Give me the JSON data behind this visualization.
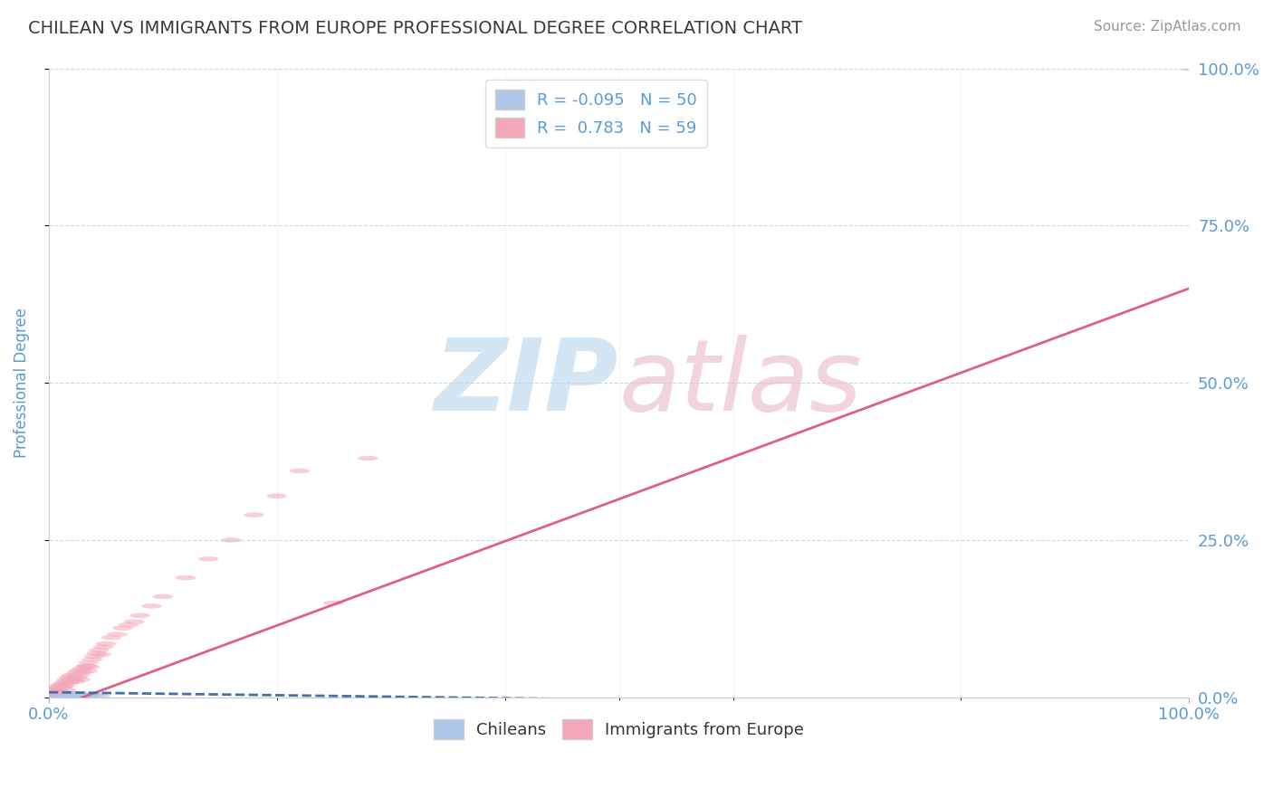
{
  "title": "CHILEAN VS IMMIGRANTS FROM EUROPE PROFESSIONAL DEGREE CORRELATION CHART",
  "source": "Source: ZipAtlas.com",
  "ylabel": "Professional Degree",
  "xlim": [
    0,
    1
  ],
  "ylim": [
    0,
    1
  ],
  "ytick_values": [
    0,
    0.25,
    0.5,
    0.75,
    1.0
  ],
  "ytick_labels": [
    "0.0%",
    "25.0%",
    "50.0%",
    "75.0%",
    "100.0%"
  ],
  "title_color": "#3a3a3a",
  "title_fontsize": 14,
  "source_color": "#999999",
  "source_fontsize": 11,
  "axis_label_color": "#5b9bd5",
  "tick_label_color": "#5b9bd5",
  "legend_color": "#5b9bd5",
  "blue_color": "#aec6e8",
  "pink_color": "#f4a7b9",
  "blue_line_color": "#4472a8",
  "pink_line_color": "#e06080",
  "grid_color": "#c8d8e8",
  "bg_color": "#ffffff",
  "watermark_zip_color": "#b8d4ed",
  "watermark_atlas_color": "#e8b8c8",
  "chilean_x": [
    0.001,
    0.002,
    0.002,
    0.003,
    0.003,
    0.004,
    0.004,
    0.005,
    0.005,
    0.005,
    0.006,
    0.006,
    0.006,
    0.007,
    0.007,
    0.007,
    0.008,
    0.008,
    0.009,
    0.009,
    0.01,
    0.01,
    0.011,
    0.011,
    0.012,
    0.012,
    0.013,
    0.014,
    0.015,
    0.015,
    0.016,
    0.016,
    0.017,
    0.018,
    0.019,
    0.02,
    0.021,
    0.022,
    0.023,
    0.024,
    0.025,
    0.026,
    0.027,
    0.028,
    0.03,
    0.032,
    0.035,
    0.038,
    0.042,
    0.045
  ],
  "chilean_y": [
    0.004,
    0.006,
    0.002,
    0.003,
    0.007,
    0.001,
    0.005,
    0.003,
    0.006,
    0.002,
    0.004,
    0.007,
    0.001,
    0.005,
    0.003,
    0.008,
    0.002,
    0.006,
    0.004,
    0.007,
    0.003,
    0.005,
    0.002,
    0.006,
    0.004,
    0.007,
    0.003,
    0.005,
    0.002,
    0.006,
    0.003,
    0.007,
    0.004,
    0.005,
    0.002,
    0.006,
    0.003,
    0.004,
    0.005,
    0.002,
    0.006,
    0.003,
    0.004,
    0.005,
    0.003,
    0.004,
    0.002,
    0.003,
    0.004,
    0.002
  ],
  "europe_x": [
    0.002,
    0.004,
    0.005,
    0.006,
    0.007,
    0.008,
    0.009,
    0.01,
    0.011,
    0.012,
    0.013,
    0.014,
    0.015,
    0.015,
    0.016,
    0.017,
    0.018,
    0.019,
    0.02,
    0.021,
    0.022,
    0.023,
    0.024,
    0.025,
    0.026,
    0.027,
    0.028,
    0.029,
    0.03,
    0.032,
    0.033,
    0.034,
    0.035,
    0.036,
    0.038,
    0.04,
    0.042,
    0.044,
    0.046,
    0.048,
    0.05,
    0.055,
    0.06,
    0.065,
    0.07,
    0.075,
    0.08,
    0.09,
    0.1,
    0.12,
    0.14,
    0.16,
    0.18,
    0.2,
    0.22,
    0.25,
    0.28,
    1.0
  ],
  "europe_y": [
    0.008,
    0.006,
    0.012,
    0.01,
    0.015,
    0.009,
    0.018,
    0.014,
    0.02,
    0.016,
    0.022,
    0.018,
    0.025,
    0.012,
    0.028,
    0.022,
    0.032,
    0.025,
    0.035,
    0.028,
    0.03,
    0.025,
    0.038,
    0.032,
    0.042,
    0.035,
    0.028,
    0.045,
    0.04,
    0.048,
    0.05,
    0.042,
    0.055,
    0.048,
    0.06,
    0.065,
    0.07,
    0.075,
    0.068,
    0.08,
    0.085,
    0.095,
    0.1,
    0.11,
    0.115,
    0.12,
    0.13,
    0.145,
    0.16,
    0.19,
    0.22,
    0.25,
    0.29,
    0.32,
    0.36,
    0.15,
    0.38,
    1.0
  ],
  "pink_line_x0": 0.0,
  "pink_line_y0": -0.02,
  "pink_line_x1": 1.0,
  "pink_line_y1": 0.65,
  "blue_line_x0": 0.0,
  "blue_line_y0": 0.008,
  "blue_line_x1": 0.55,
  "blue_line_y1": -0.005
}
